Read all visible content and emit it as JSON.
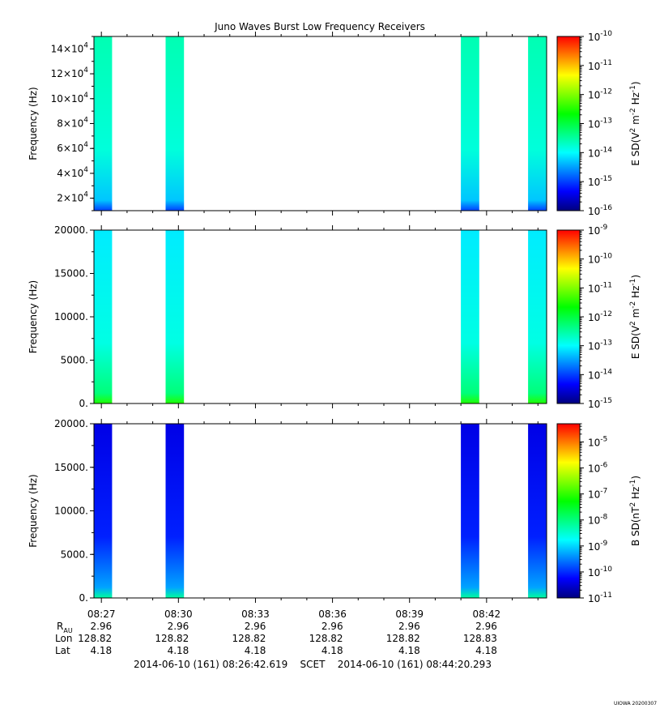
{
  "title": "Juno Waves Burst Low Frequency Receivers",
  "watermark": "UIOWA 20200307",
  "colormap": [
    "#00007f",
    "#0000ff",
    "#0080ff",
    "#00ffff",
    "#00ff80",
    "#00ff00",
    "#80ff00",
    "#ffff00",
    "#ff8000",
    "#ff0000"
  ],
  "chart_data": [
    {
      "type": "heatmap",
      "name": "panel-1",
      "ylabel": "Frequency (Hz)",
      "ylim": [
        10000,
        150000
      ],
      "yticks": [
        {
          "value": 20000,
          "mant": "2",
          "exp": "4"
        },
        {
          "value": 40000,
          "mant": "4",
          "exp": "4"
        },
        {
          "value": 60000,
          "mant": "6",
          "exp": "4"
        },
        {
          "value": 80000,
          "mant": "8",
          "exp": "4"
        },
        {
          "value": 100000,
          "mant": "10",
          "exp": "4"
        },
        {
          "value": 120000,
          "mant": "12",
          "exp": "4"
        },
        {
          "value": 140000,
          "mant": "14",
          "exp": "4"
        }
      ],
      "colorbar": {
        "label_parts": [
          "E SD(V",
          "2",
          " m",
          "-2",
          " Hz",
          "-1",
          ")"
        ],
        "log_range": [
          -16,
          -10
        ],
        "ticks": [
          {
            "value": -10,
            "text": "10",
            "exp": "-10"
          },
          {
            "value": -11,
            "text": "10",
            "exp": "-11"
          },
          {
            "value": -12,
            "text": "10",
            "exp": "-12"
          },
          {
            "value": -13,
            "text": "10",
            "exp": "-13"
          },
          {
            "value": -14,
            "text": "10",
            "exp": "-14"
          },
          {
            "value": -15,
            "text": "10",
            "exp": "-15"
          },
          {
            "value": -16,
            "text": "10",
            "exp": "-16"
          }
        ]
      },
      "bursts": [
        {
          "start": "08:26:42",
          "end": "08:27:25",
          "level": -13.6,
          "low_level": -15.0
        },
        {
          "start": "08:29:30",
          "end": "08:30:13",
          "level": -13.6,
          "low_level": -15.0
        },
        {
          "start": "08:41:00",
          "end": "08:41:43",
          "level": -13.6,
          "low_level": -15.0
        },
        {
          "start": "08:43:37",
          "end": "08:44:20",
          "level": -13.6,
          "low_level": -15.0
        }
      ]
    },
    {
      "type": "heatmap",
      "name": "panel-2",
      "ylabel": "Frequency (Hz)",
      "ylim": [
        0,
        20000
      ],
      "yticks": [
        {
          "value": 0,
          "text": "0."
        },
        {
          "value": 5000,
          "text": "5000."
        },
        {
          "value": 10000,
          "text": "10000."
        },
        {
          "value": 15000,
          "text": "15000."
        },
        {
          "value": 20000,
          "text": "20000."
        }
      ],
      "colorbar": {
        "label_parts": [
          "E SD(V",
          "2",
          " m",
          "-2",
          " Hz",
          "-1",
          ")"
        ],
        "log_range": [
          -15,
          -9
        ],
        "ticks": [
          {
            "value": -9,
            "text": "10",
            "exp": "-9"
          },
          {
            "value": -10,
            "text": "10",
            "exp": "-10"
          },
          {
            "value": -11,
            "text": "10",
            "exp": "-11"
          },
          {
            "value": -12,
            "text": "10",
            "exp": "-12"
          },
          {
            "value": -13,
            "text": "10",
            "exp": "-13"
          },
          {
            "value": -14,
            "text": "10",
            "exp": "-14"
          },
          {
            "value": -15,
            "text": "10",
            "exp": "-15"
          }
        ]
      },
      "bursts": [
        {
          "start": "08:26:42",
          "end": "08:27:25",
          "level": -13.1,
          "low_level": -11.5
        },
        {
          "start": "08:29:30",
          "end": "08:30:13",
          "level": -13.1,
          "low_level": -11.5
        },
        {
          "start": "08:41:00",
          "end": "08:41:43",
          "level": -13.1,
          "low_level": -11.5
        },
        {
          "start": "08:43:37",
          "end": "08:44:20",
          "level": -13.1,
          "low_level": -11.5
        }
      ]
    },
    {
      "type": "heatmap",
      "name": "panel-3",
      "ylabel": "Frequency (Hz)",
      "ylim": [
        0,
        20000
      ],
      "yticks": [
        {
          "value": 0,
          "text": "0."
        },
        {
          "value": 5000,
          "text": "5000."
        },
        {
          "value": 10000,
          "text": "10000."
        },
        {
          "value": 15000,
          "text": "15000."
        },
        {
          "value": 20000,
          "text": "20000."
        }
      ],
      "colorbar": {
        "label_parts": [
          "B SD(nT",
          "2",
          " Hz",
          "-1",
          ")"
        ],
        "log_range": [
          -11,
          -4.3
        ],
        "ticks": [
          {
            "value": -5,
            "text": "10",
            "exp": "-5"
          },
          {
            "value": -6,
            "text": "10",
            "exp": "-6"
          },
          {
            "value": -7,
            "text": "10",
            "exp": "-7"
          },
          {
            "value": -8,
            "text": "10",
            "exp": "-8"
          },
          {
            "value": -9,
            "text": "10",
            "exp": "-9"
          },
          {
            "value": -10,
            "text": "10",
            "exp": "-10"
          },
          {
            "value": -11,
            "text": "10",
            "exp": "-11"
          }
        ]
      },
      "bursts": [
        {
          "start": "08:26:42",
          "end": "08:27:25",
          "level": -10.4,
          "low_level": -8.2
        },
        {
          "start": "08:29:30",
          "end": "08:30:13",
          "level": -10.4,
          "low_level": -8.2
        },
        {
          "start": "08:41:00",
          "end": "08:41:43",
          "level": -10.4,
          "low_level": -8.2
        },
        {
          "start": "08:43:37",
          "end": "08:44:20",
          "level": -10.4,
          "low_level": -8.2
        }
      ]
    }
  ],
  "time_axis": {
    "range": [
      "08:26:42.619",
      "08:44:20.293"
    ],
    "ticks": [
      "08:27",
      "08:30",
      "08:33",
      "08:36",
      "08:39",
      "08:42"
    ]
  },
  "ephemeris": {
    "labels": {
      "r": "R",
      "r_sub": "AU",
      "lon": "Lon",
      "lat": "Lat"
    },
    "r": [
      "2.96",
      "2.96",
      "2.96",
      "2.96",
      "2.96",
      "2.96"
    ],
    "lon": [
      "128.82",
      "128.82",
      "128.82",
      "128.82",
      "128.82",
      "128.83"
    ],
    "lat": [
      "4.18",
      "4.18",
      "4.18",
      "4.18",
      "4.18",
      "4.18"
    ]
  },
  "footer": {
    "start": "2014-06-10 (161) 08:26:42.619",
    "scet": "SCET",
    "end": "2014-06-10 (161) 08:44:20.293"
  }
}
